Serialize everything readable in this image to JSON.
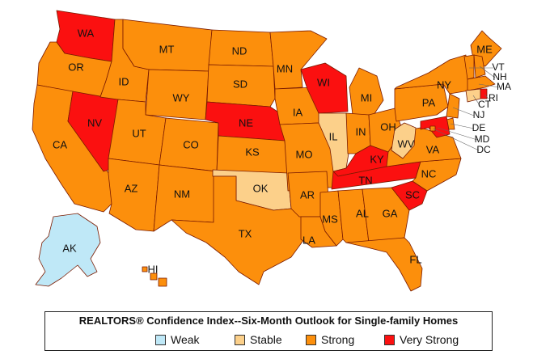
{
  "colors": {
    "weak": "#bfe8f7",
    "stable": "#fcd08a",
    "strong": "#fc8f0c",
    "very_strong": "#fb1010",
    "border": "#7a1a00"
  },
  "legend": {
    "title": "REALTORS® Confidence Index--Six-Month Outlook for Single-family Homes",
    "items": [
      {
        "key": "weak",
        "label": "Weak"
      },
      {
        "key": "stable",
        "label": "Stable"
      },
      {
        "key": "strong",
        "label": "Strong"
      },
      {
        "key": "very_strong",
        "label": "Very Strong"
      }
    ]
  },
  "states": [
    {
      "abbr": "WA",
      "outlook": "very_strong"
    },
    {
      "abbr": "OR",
      "outlook": "strong"
    },
    {
      "abbr": "CA",
      "outlook": "strong"
    },
    {
      "abbr": "NV",
      "outlook": "very_strong"
    },
    {
      "abbr": "ID",
      "outlook": "strong"
    },
    {
      "abbr": "MT",
      "outlook": "strong"
    },
    {
      "abbr": "WY",
      "outlook": "strong"
    },
    {
      "abbr": "UT",
      "outlook": "strong"
    },
    {
      "abbr": "AZ",
      "outlook": "strong"
    },
    {
      "abbr": "CO",
      "outlook": "strong"
    },
    {
      "abbr": "NM",
      "outlook": "strong"
    },
    {
      "abbr": "ND",
      "outlook": "strong"
    },
    {
      "abbr": "SD",
      "outlook": "strong"
    },
    {
      "abbr": "NE",
      "outlook": "very_strong"
    },
    {
      "abbr": "KS",
      "outlook": "strong"
    },
    {
      "abbr": "OK",
      "outlook": "stable"
    },
    {
      "abbr": "TX",
      "outlook": "strong"
    },
    {
      "abbr": "MN",
      "outlook": "strong"
    },
    {
      "abbr": "IA",
      "outlook": "strong"
    },
    {
      "abbr": "MO",
      "outlook": "strong"
    },
    {
      "abbr": "AR",
      "outlook": "strong"
    },
    {
      "abbr": "LA",
      "outlook": "strong"
    },
    {
      "abbr": "WI",
      "outlook": "very_strong"
    },
    {
      "abbr": "IL",
      "outlook": "stable"
    },
    {
      "abbr": "MI",
      "outlook": "strong"
    },
    {
      "abbr": "IN",
      "outlook": "strong"
    },
    {
      "abbr": "OH",
      "outlook": "strong"
    },
    {
      "abbr": "KY",
      "outlook": "very_strong"
    },
    {
      "abbr": "TN",
      "outlook": "very_strong"
    },
    {
      "abbr": "MS",
      "outlook": "strong"
    },
    {
      "abbr": "AL",
      "outlook": "strong"
    },
    {
      "abbr": "GA",
      "outlook": "strong"
    },
    {
      "abbr": "FL",
      "outlook": "strong"
    },
    {
      "abbr": "SC",
      "outlook": "very_strong"
    },
    {
      "abbr": "NC",
      "outlook": "strong"
    },
    {
      "abbr": "VA",
      "outlook": "strong"
    },
    {
      "abbr": "WV",
      "outlook": "stable"
    },
    {
      "abbr": "PA",
      "outlook": "strong"
    },
    {
      "abbr": "NY",
      "outlook": "strong"
    },
    {
      "abbr": "ME",
      "outlook": "strong"
    },
    {
      "abbr": "VT",
      "outlook": "strong"
    },
    {
      "abbr": "NH",
      "outlook": "strong"
    },
    {
      "abbr": "MA",
      "outlook": "strong"
    },
    {
      "abbr": "RI",
      "outlook": "very_strong"
    },
    {
      "abbr": "CT",
      "outlook": "stable"
    },
    {
      "abbr": "NJ",
      "outlook": "strong"
    },
    {
      "abbr": "DE",
      "outlook": "strong"
    },
    {
      "abbr": "MD",
      "outlook": "very_strong"
    },
    {
      "abbr": "DC",
      "outlook": "strong"
    },
    {
      "abbr": "AK",
      "outlook": "weak"
    },
    {
      "abbr": "HI",
      "outlook": "strong"
    }
  ]
}
